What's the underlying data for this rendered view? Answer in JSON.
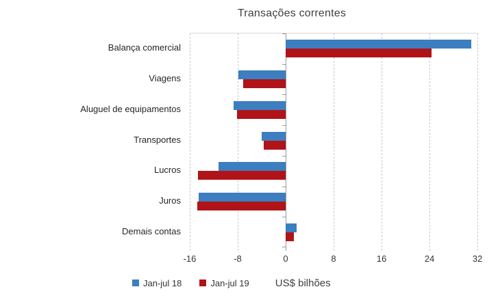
{
  "title": "Transações correntes",
  "legend": {
    "series1_label": "Jan-jul 18",
    "series2_label": "Jan-jul 19"
  },
  "colors": {
    "series1": "#3C7EBF",
    "series2": "#B01418",
    "gridline": "#c9c9c9",
    "axis": "#9b9b9b",
    "text": "#262626"
  },
  "chart_data": {
    "type": "bar",
    "orientation": "horizontal",
    "title": "Transações correntes",
    "xlabel": "US$ bilhões",
    "ylabel": "",
    "categories": [
      "Balança comercial",
      "Viagens",
      "Aluguel de equipamentos",
      "Transportes",
      "Lucros",
      "Juros",
      "Demais contas"
    ],
    "series": [
      {
        "name": "Jan-jul 18",
        "color": "#3C7EBF",
        "values": [
          31.0,
          -7.9,
          -8.7,
          -4.0,
          -11.2,
          -14.5,
          1.8
        ]
      },
      {
        "name": "Jan-jul 19",
        "color": "#B01418",
        "values": [
          24.3,
          -7.1,
          -8.1,
          -3.7,
          -14.6,
          -14.8,
          1.4
        ]
      }
    ],
    "x_ticks": [
      -16,
      -8,
      0,
      8,
      16,
      24,
      32
    ],
    "xlim": [
      -16,
      32
    ],
    "unit_label": "US$ bilhões",
    "gridlines": "vertical-dashed",
    "legend_position": "bottom-left"
  }
}
